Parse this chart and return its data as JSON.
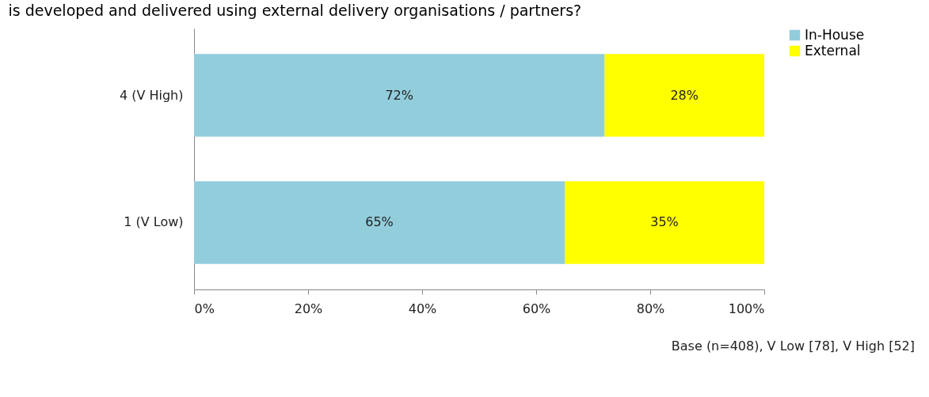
{
  "chart_data": {
    "type": "bar",
    "orientation": "horizontal",
    "stacked": true,
    "title": "is developed and delivered using external delivery organisations / partners?",
    "categories": [
      "4 (V High)",
      "1 (V Low)"
    ],
    "series": [
      {
        "name": "In-House",
        "color": "#92cddc",
        "values": [
          72,
          65
        ]
      },
      {
        "name": "External",
        "color": "#ffff00",
        "values": [
          28,
          35
        ]
      }
    ],
    "xlim": [
      0,
      100
    ],
    "xticks": [
      {
        "value": 0,
        "label": "0%"
      },
      {
        "value": 20,
        "label": "20%"
      },
      {
        "value": 40,
        "label": "40%"
      },
      {
        "value": 60,
        "label": "60%"
      },
      {
        "value": 80,
        "label": "80%"
      },
      {
        "value": 100,
        "label": "100%"
      }
    ],
    "value_labels": [
      [
        "72%",
        "65%"
      ],
      [
        "28%",
        "35%"
      ]
    ],
    "annotations": [
      "Base (n=408), V Low [78], V High [52]"
    ],
    "legend": "right",
    "grid": false
  }
}
